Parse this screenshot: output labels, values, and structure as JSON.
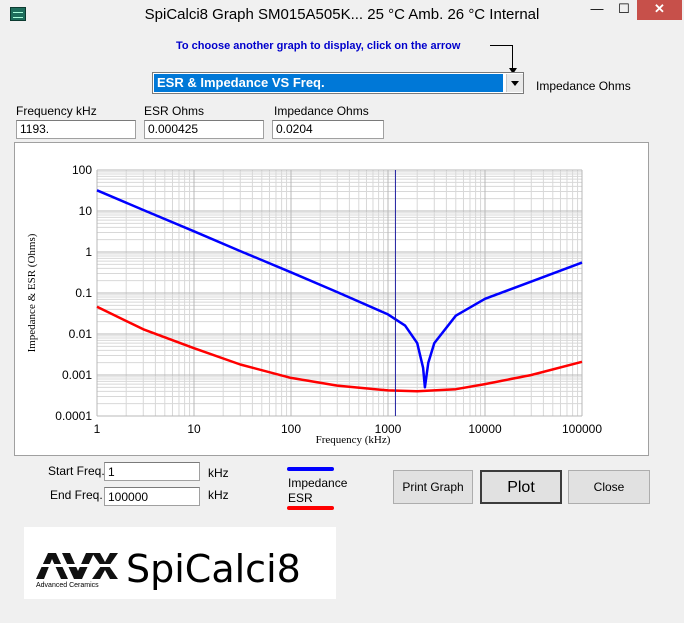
{
  "window": {
    "title": "SpiCalci8 Graph SM015A505K...   25 °C Amb.    26 °C Internal",
    "minimize_glyph": "—",
    "maximize_glyph": "☐",
    "close_glyph": "✕"
  },
  "instruction": "To choose another graph to display, click on the arrow",
  "graph_selector": {
    "selected": "ESR & Impedance VS Freq."
  },
  "right_label": "Impedance Ohms",
  "readouts": [
    {
      "label": "Frequency kHz",
      "value": "1193."
    },
    {
      "label": "ESR Ohms",
      "value": "0.000425"
    },
    {
      "label": "Impedance Ohms",
      "value": "0.0204"
    }
  ],
  "inputs": {
    "start_freq": {
      "label": "Start Freq.",
      "value": "1",
      "unit": "kHz"
    },
    "end_freq": {
      "label": "End Freq.",
      "value": "100000",
      "unit": "kHz"
    }
  },
  "legend": [
    {
      "name": "Impedance",
      "color": "#0000ff"
    },
    {
      "name": "ESR",
      "color": "#ff0000"
    }
  ],
  "buttons": {
    "print": "Print Graph",
    "plot": "Plot",
    "close": "Close"
  },
  "logo": {
    "company": "AVX",
    "company_sub": "Advanced Ceramics",
    "product": "SpiCalci8"
  },
  "colors": {
    "impedance": "#0000ff",
    "esr": "#ff0000",
    "cursor": "#2020a0",
    "selection": "#0078d7"
  },
  "chart_data": {
    "type": "line",
    "xlabel": "Frequency (kHz)",
    "ylabel": "Impedance & ESR (Ohms)",
    "x_scale": "log",
    "y_scale": "log",
    "xlim": [
      1,
      100000
    ],
    "ylim": [
      0.0001,
      100
    ],
    "x_ticks": [
      "1",
      "10",
      "100",
      "1000",
      "10000",
      "100000"
    ],
    "y_ticks": [
      "100",
      "10",
      "1",
      "0.1",
      "0.01",
      "0.001",
      "0.0001"
    ],
    "grid": true,
    "cursor_x": 1193,
    "series": [
      {
        "name": "Impedance",
        "color": "#0000ff",
        "x": [
          1,
          3,
          10,
          30,
          100,
          300,
          1000,
          1500,
          2000,
          2300,
          2400,
          2600,
          3000,
          5000,
          10000,
          30000,
          100000
        ],
        "y": [
          32,
          10.6,
          3.2,
          1.05,
          0.32,
          0.105,
          0.03,
          0.016,
          0.006,
          0.0015,
          0.0005,
          0.002,
          0.006,
          0.028,
          0.072,
          0.19,
          0.55
        ]
      },
      {
        "name": "ESR",
        "color": "#ff0000",
        "x": [
          1,
          3,
          10,
          30,
          100,
          300,
          1000,
          2000,
          5000,
          10000,
          30000,
          100000
        ],
        "y": [
          0.046,
          0.013,
          0.0045,
          0.0018,
          0.00085,
          0.00055,
          0.00042,
          0.0004,
          0.00045,
          0.0006,
          0.001,
          0.0021
        ]
      }
    ]
  }
}
